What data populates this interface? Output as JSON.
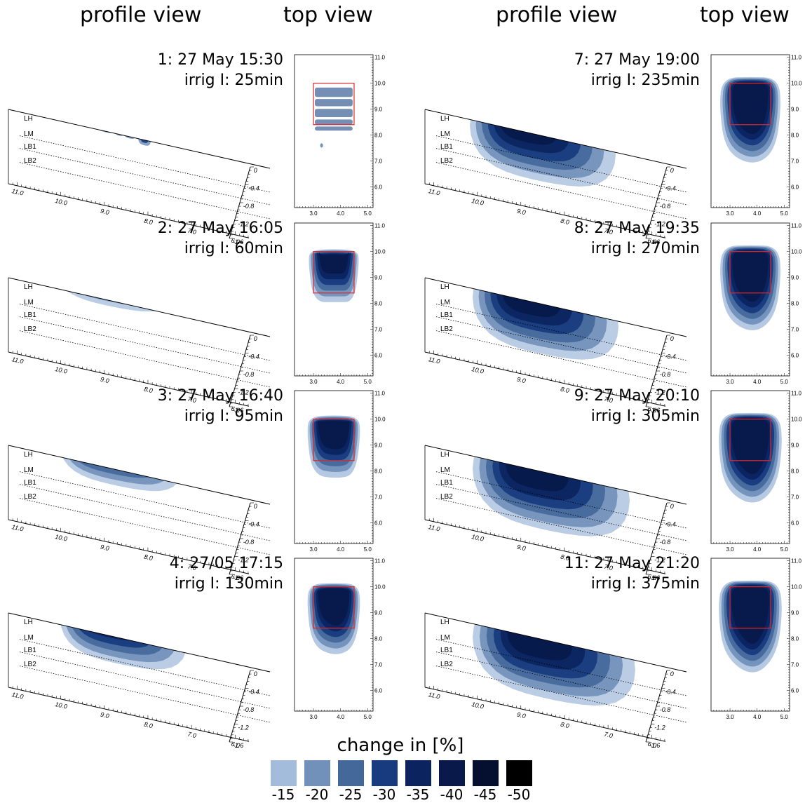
{
  "headers": [
    "profile view",
    "top view",
    "profile view",
    "top view"
  ],
  "layer_labels": [
    "LH",
    "LM",
    "LB1",
    "LB2"
  ],
  "profile_x_ticks": [
    "11.0",
    "10.0",
    "9.0",
    "8.0",
    "7.0",
    "6.0"
  ],
  "profile_depth_ticks": [
    "0",
    "-0.4",
    "-0.8",
    "-1.2",
    "-1.6"
  ],
  "top_y_ticks": [
    "11.0",
    "10.0",
    "9.0",
    "8.0",
    "7.0",
    "6.0"
  ],
  "top_x_ticks": [
    "3.0",
    "4.0",
    "5.0"
  ],
  "legend": {
    "title": "change in [%]",
    "items": [
      {
        "value": "-15",
        "color": "#a3bcdc"
      },
      {
        "value": "-20",
        "color": "#7190ba"
      },
      {
        "value": "-25",
        "color": "#45689b"
      },
      {
        "value": "-30",
        "color": "#173b7e"
      },
      {
        "value": "-35",
        "color": "#0b2460"
      },
      {
        "value": "-40",
        "color": "#08194a"
      },
      {
        "value": "-45",
        "color": "#050f30"
      },
      {
        "value": "-50",
        "color": "#000000"
      }
    ]
  },
  "chart_data": {
    "type": "heatmap",
    "description_colorscale": "change in [%]",
    "panels": [
      {
        "title": "1: 27 May 15:30",
        "irrig": "irrig I: 25min",
        "stage": 1
      },
      {
        "title": "2: 27 May 16:05",
        "irrig": "irrig I: 60min",
        "stage": 2
      },
      {
        "title": "3: 27 May 16:40",
        "irrig": "irrig I: 95min",
        "stage": 3
      },
      {
        "title": "4: 27/05 17:15",
        "irrig": "irrig I: 130min",
        "stage": 4
      },
      {
        "title": "7: 27 May 19:00",
        "irrig": "irrig I: 235min",
        "stage": 5
      },
      {
        "title": "8: 27 May 19:35",
        "irrig": "irrig I: 270min",
        "stage": 6
      },
      {
        "title": "9: 27 May 20:10",
        "irrig": "irrig I: 305min",
        "stage": 7
      },
      {
        "title": "11: 27 May 21:20",
        "irrig": "irrig I: 375min",
        "stage": 8
      }
    ],
    "irrigation_box_top_view": {
      "x": [
        3.0,
        4.5
      ],
      "y": [
        8.4,
        10.0
      ]
    },
    "top_view_xlim": [
      2.3,
      5.2
    ],
    "top_view_ylim": [
      5.2,
      11.1
    ],
    "profile_depth_range": [
      0,
      -1.6
    ]
  }
}
